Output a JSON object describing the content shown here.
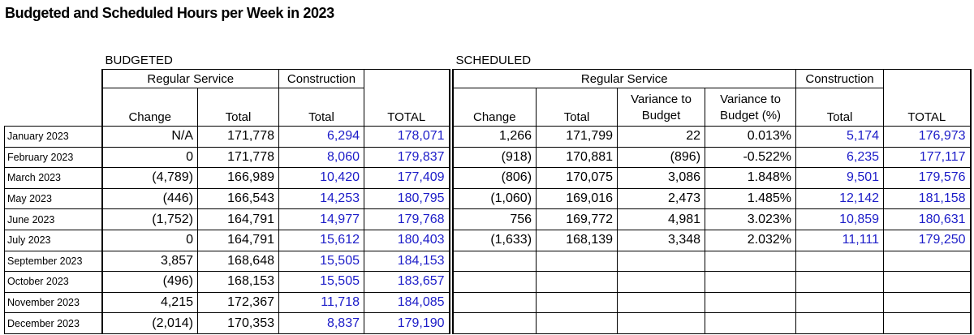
{
  "title": "Budgeted and Scheduled Hours per Week in 2023",
  "sections": {
    "budgeted": "BUDGETED",
    "scheduled": "SCHEDULED"
  },
  "header": {
    "budgeted_groups": [
      "Regular Service",
      "Construction"
    ],
    "budgeted_columns": [
      "Change",
      "Total",
      "Total",
      "TOTAL"
    ],
    "scheduled_groups": [
      "Regular Service",
      "Construction"
    ],
    "scheduled_columns": [
      "Change",
      "Total",
      "Variance to Budget",
      "Variance to Budget (%)",
      "Total",
      "TOTAL"
    ]
  },
  "rows": [
    {
      "month": "January 2023",
      "budgeted": [
        "N/A",
        "171,778",
        "6,294",
        "178,071"
      ],
      "scheduled": [
        "1,266",
        "171,799",
        "22",
        "0.013%",
        "5,174",
        "176,973"
      ]
    },
    {
      "month": "February 2023",
      "budgeted": [
        "0",
        "171,778",
        "8,060",
        "179,837"
      ],
      "scheduled": [
        "(918)",
        "170,881",
        "(896)",
        "-0.522%",
        "6,235",
        "177,117"
      ]
    },
    {
      "month": "March  2023",
      "budgeted": [
        "(4,789)",
        "166,989",
        "10,420",
        "177,409"
      ],
      "scheduled": [
        "(806)",
        "170,075",
        "3,086",
        "1.848%",
        "9,501",
        "179,576"
      ]
    },
    {
      "month": "May 2023",
      "budgeted": [
        "(446)",
        "166,543",
        "14,253",
        "180,795"
      ],
      "scheduled": [
        "(1,060)",
        "169,016",
        "2,473",
        "1.485%",
        "12,142",
        "181,158"
      ]
    },
    {
      "month": "June 2023",
      "budgeted": [
        "(1,752)",
        "164,791",
        "14,977",
        "179,768"
      ],
      "scheduled": [
        "756",
        "169,772",
        "4,981",
        "3.023%",
        "10,859",
        "180,631"
      ]
    },
    {
      "month": "July 2023",
      "budgeted": [
        "0",
        "164,791",
        "15,612",
        "180,403"
      ],
      "scheduled": [
        "(1,633)",
        "168,139",
        "3,348",
        "2.032%",
        "11,111",
        "179,250"
      ]
    },
    {
      "month": "September 2023",
      "budgeted": [
        "3,857",
        "168,648",
        "15,505",
        "184,153"
      ]
    },
    {
      "month": "October 2023",
      "budgeted": [
        "(496)",
        "168,153",
        "15,505",
        "183,657"
      ]
    },
    {
      "month": "November 2023",
      "budgeted": [
        "4,215",
        "172,367",
        "11,718",
        "184,085"
      ]
    },
    {
      "month": "December 2023",
      "budgeted": [
        "(2,014)",
        "170,353",
        "8,837",
        "179,190"
      ]
    }
  ]
}
